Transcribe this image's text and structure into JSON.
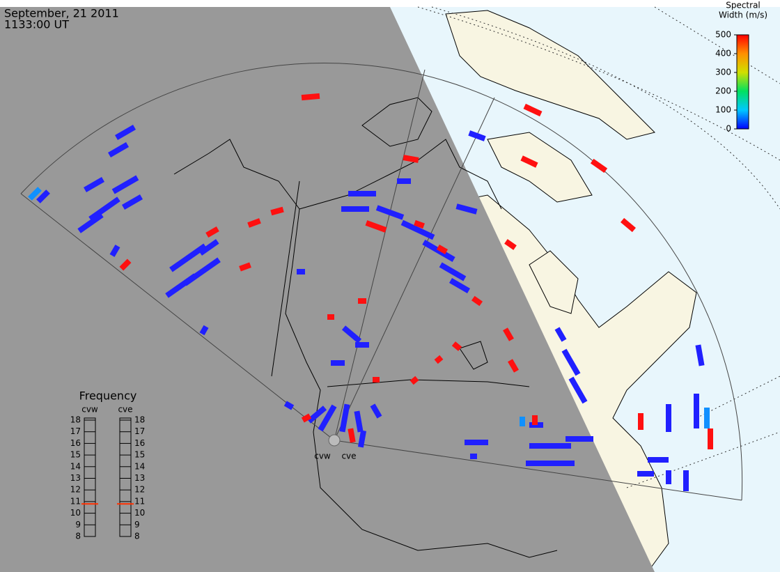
{
  "header": {
    "date": "September, 21 2011",
    "time": "1133:00 UT"
  },
  "colorbar": {
    "title": [
      "Spectral",
      "Width (m/s)"
    ],
    "lim": [
      0,
      500
    ],
    "ticks": [
      0,
      100,
      200,
      300,
      400,
      500
    ]
  },
  "frequency": {
    "title": "Frequency",
    "lim": [
      8,
      18
    ],
    "ticks": [
      8,
      9,
      10,
      11,
      12,
      13,
      14,
      15,
      16,
      17,
      18
    ],
    "radars": [
      {
        "name": "cvw",
        "value": 10.8
      },
      {
        "name": "cve",
        "value": 10.8
      }
    ]
  },
  "site_labels": [
    "cvw",
    "cve"
  ]
}
